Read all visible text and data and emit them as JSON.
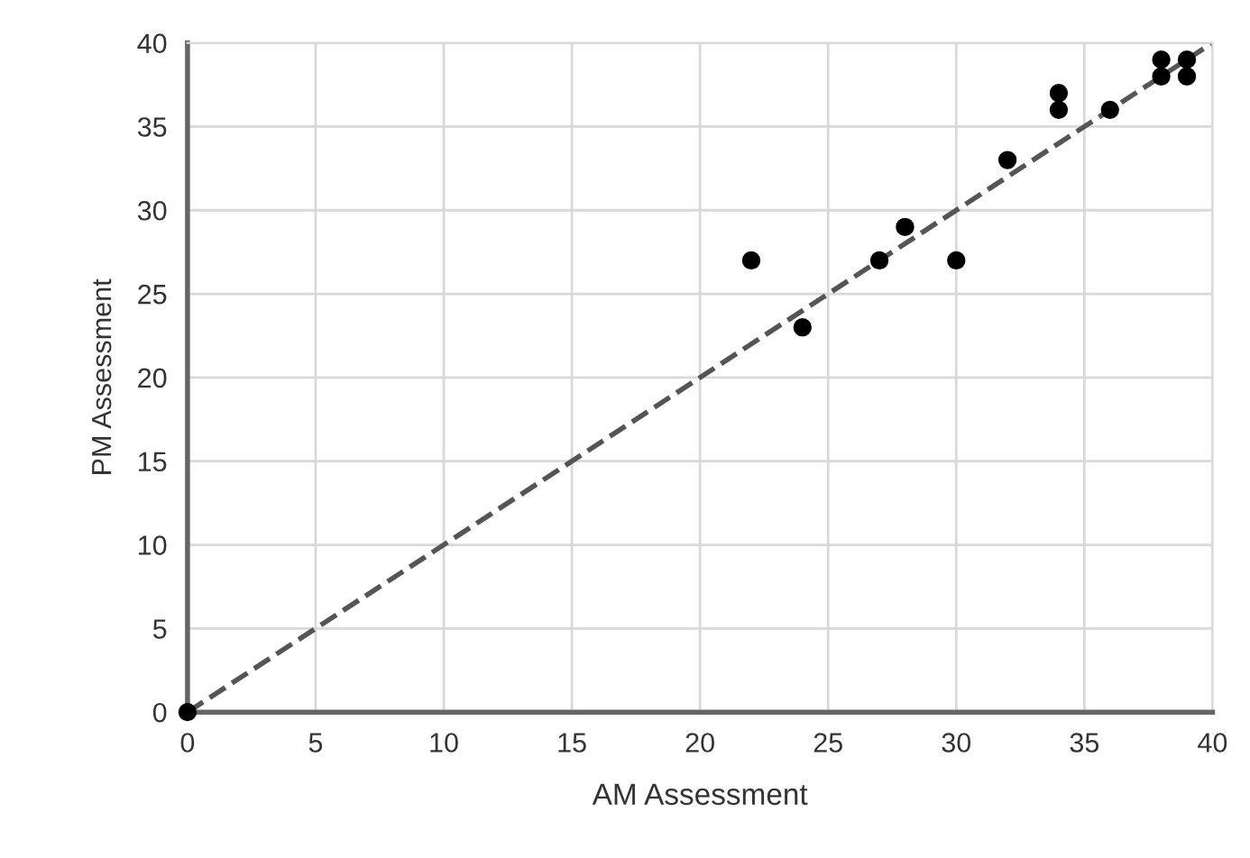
{
  "chart_data": {
    "type": "scatter",
    "xlabel": "AM Assessment",
    "ylabel": "PM Assessment",
    "xlim": [
      0,
      40
    ],
    "ylim": [
      0,
      40
    ],
    "xticks": [
      0,
      5,
      10,
      15,
      20,
      25,
      30,
      35,
      40
    ],
    "yticks": [
      0,
      5,
      10,
      15,
      20,
      25,
      30,
      35,
      40
    ],
    "grid": true,
    "series": [
      {
        "marker": "circle",
        "color": "#000000",
        "x": [
          0,
          22,
          24,
          27,
          28,
          30,
          32,
          34,
          34,
          36,
          38,
          38,
          39,
          39
        ],
        "values": [
          0,
          27,
          23,
          27,
          29,
          27,
          33,
          36,
          37,
          36,
          38,
          39,
          38,
          39
        ]
      },
      {
        "type": "line",
        "color": "#555555",
        "line_style": "dashed",
        "marker": "none",
        "x": [
          0,
          40
        ],
        "values": [
          0,
          40
        ]
      }
    ]
  }
}
